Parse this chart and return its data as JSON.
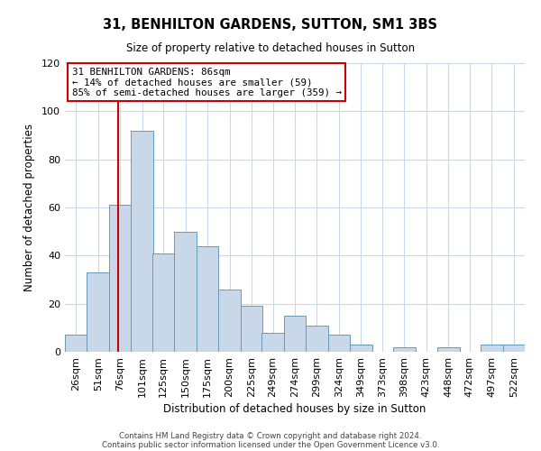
{
  "title": "31, BENHILTON GARDENS, SUTTON, SM1 3BS",
  "subtitle": "Size of property relative to detached houses in Sutton",
  "xlabel": "Distribution of detached houses by size in Sutton",
  "ylabel": "Number of detached properties",
  "bar_labels": [
    "26sqm",
    "51sqm",
    "76sqm",
    "101sqm",
    "125sqm",
    "150sqm",
    "175sqm",
    "200sqm",
    "225sqm",
    "249sqm",
    "274sqm",
    "299sqm",
    "324sqm",
    "349sqm",
    "373sqm",
    "398sqm",
    "423sqm",
    "448sqm",
    "472sqm",
    "497sqm",
    "522sqm"
  ],
  "bar_values": [
    7,
    33,
    61,
    92,
    41,
    50,
    44,
    26,
    19,
    8,
    15,
    11,
    7,
    3,
    0,
    2,
    0,
    2,
    0,
    3,
    3
  ],
  "bar_color": "#c8d8e8",
  "bar_edge_color": "#6699bb",
  "ylim": [
    0,
    120
  ],
  "yticks": [
    0,
    20,
    40,
    60,
    80,
    100,
    120
  ],
  "property_line_x": 86,
  "bin_starts": [
    26,
    51,
    76,
    101,
    125,
    150,
    175,
    200,
    225,
    249,
    274,
    299,
    324,
    349,
    373,
    398,
    423,
    448,
    472,
    497,
    522
  ],
  "bin_width": 25,
  "annotation_title": "31 BENHILTON GARDENS: 86sqm",
  "annotation_line1": "← 14% of detached houses are smaller (59)",
  "annotation_line2": "85% of semi-detached houses are larger (359) →",
  "annotation_box_color": "#cc0000",
  "footer1": "Contains HM Land Registry data © Crown copyright and database right 2024.",
  "footer2": "Contains public sector information licensed under the Open Government Licence v3.0.",
  "background_color": "#ffffff",
  "grid_color": "#c8d8e8"
}
